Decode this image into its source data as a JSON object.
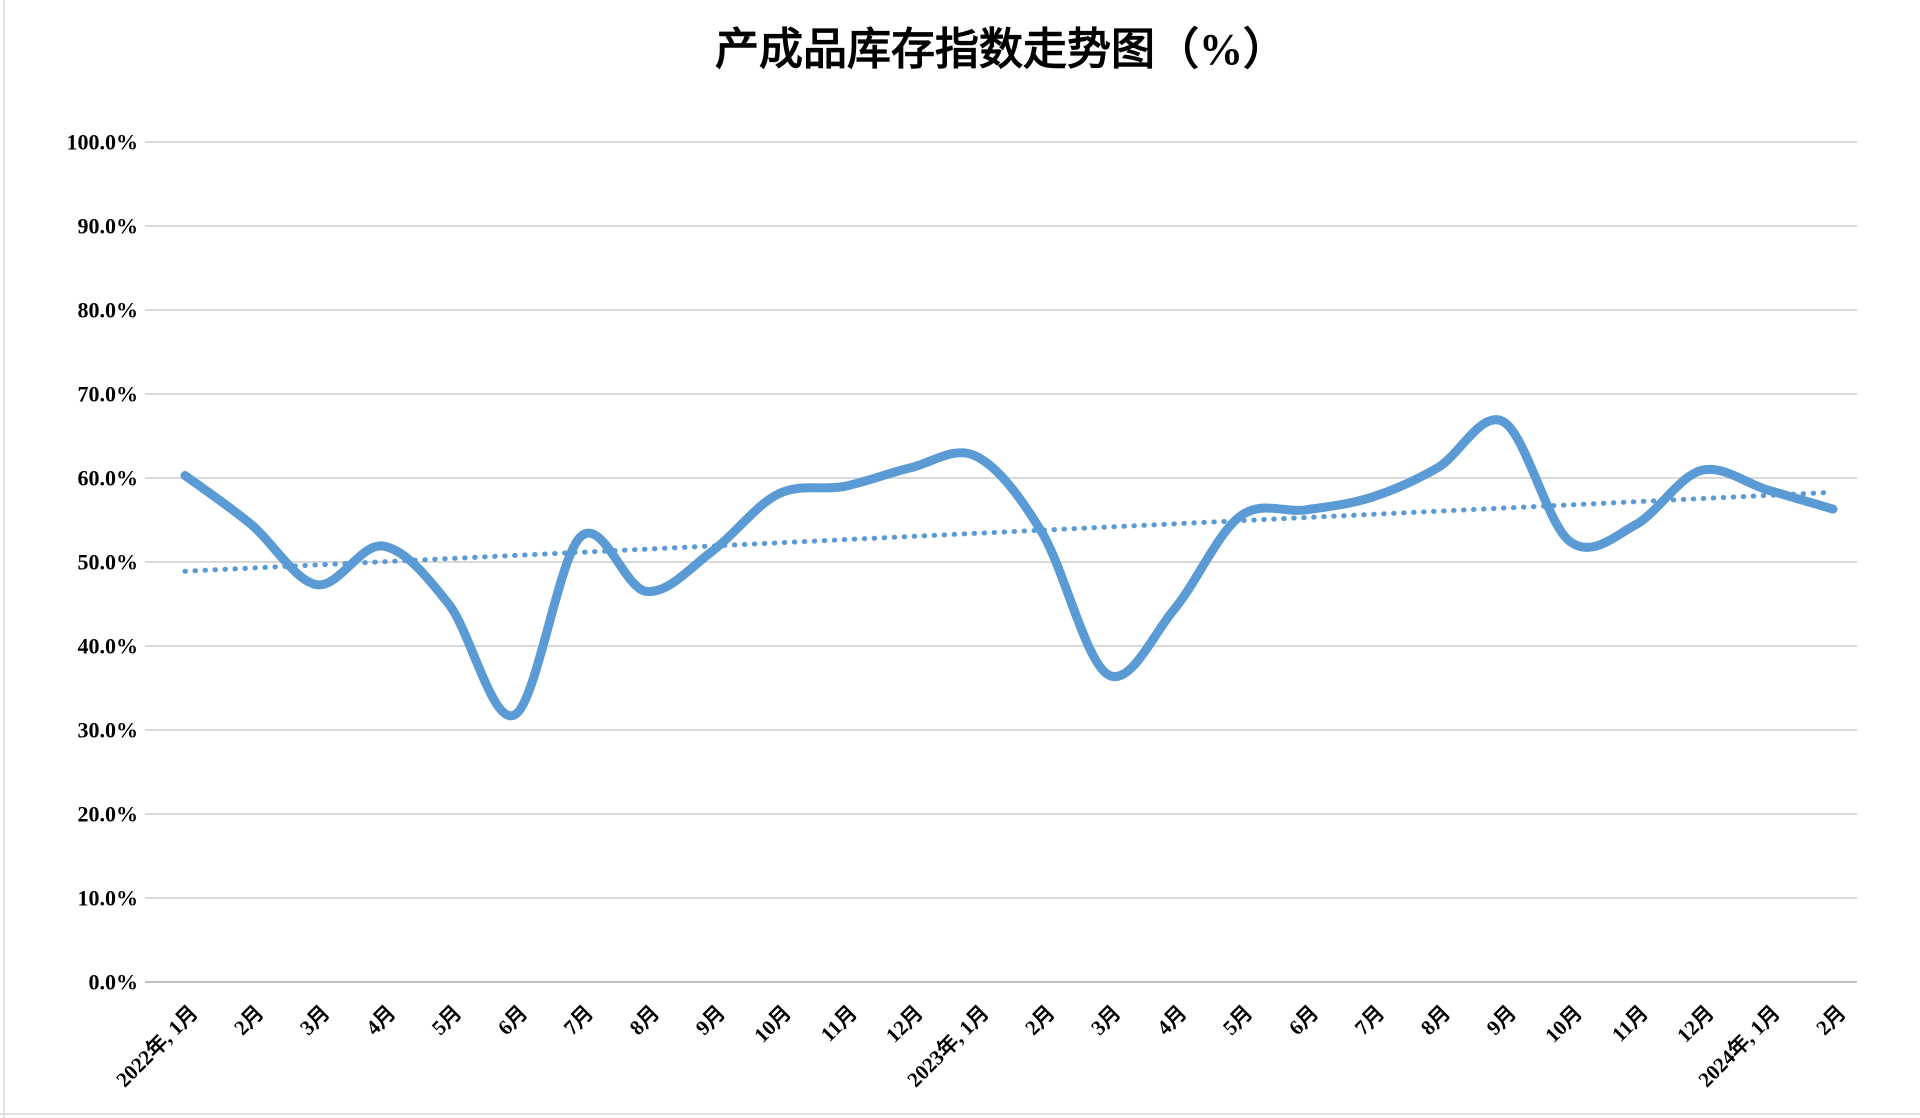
{
  "page": {
    "background": "#ffffff",
    "frame_border_color": "#d9d9d9"
  },
  "chart_data": {
    "type": "line",
    "title": "产成品库存指数走势图（%）",
    "categories": [
      "2022年, 1月",
      "2月",
      "3月",
      "4月",
      "5月",
      "6月",
      "7月",
      "8月",
      "9月",
      "10月",
      "11月",
      "12月",
      "2023年, 1月",
      "2月",
      "3月",
      "4月",
      "5月",
      "6月",
      "7月",
      "8月",
      "9月",
      "10月",
      "11月",
      "12月",
      "2024年, 1月",
      "2月"
    ],
    "series": [
      {
        "name": "产成品库存指数",
        "style": "smooth-line",
        "color": "#5b9bd5",
        "stroke_width": 9,
        "values": [
          60.3,
          54.5,
          47.3,
          51.9,
          45.0,
          31.8,
          53.0,
          46.5,
          51.3,
          58.1,
          59.0,
          61.2,
          62.6,
          53.5,
          36.6,
          44.3,
          55.4,
          56.2,
          57.7,
          61.2,
          66.7,
          52.5,
          54.4,
          60.9,
          58.6,
          56.3
        ]
      },
      {
        "name": "线性趋势线",
        "style": "dotted-trendline",
        "color": "#5b9bd5",
        "stroke_width": 5,
        "trend_start": 48.9,
        "trend_end": 58.3
      }
    ],
    "xlabel": "",
    "ylabel": "",
    "ylim": [
      0,
      100
    ],
    "ytick_step": 10,
    "ytick_decimals": 1,
    "ytick_suffix": "%",
    "ytick_labels": [
      "0.0%",
      "10.0%",
      "20.0%",
      "30.0%",
      "40.0%",
      "50.0%",
      "60.0%",
      "70.0%",
      "80.0%",
      "90.0%",
      "100.0%"
    ],
    "grid": true,
    "gridline_color": "#d9d9d9",
    "axis_line_color": "#bfbfbf",
    "text_color": "#000000",
    "x_label_rotation_deg": 45,
    "legend": "none"
  }
}
